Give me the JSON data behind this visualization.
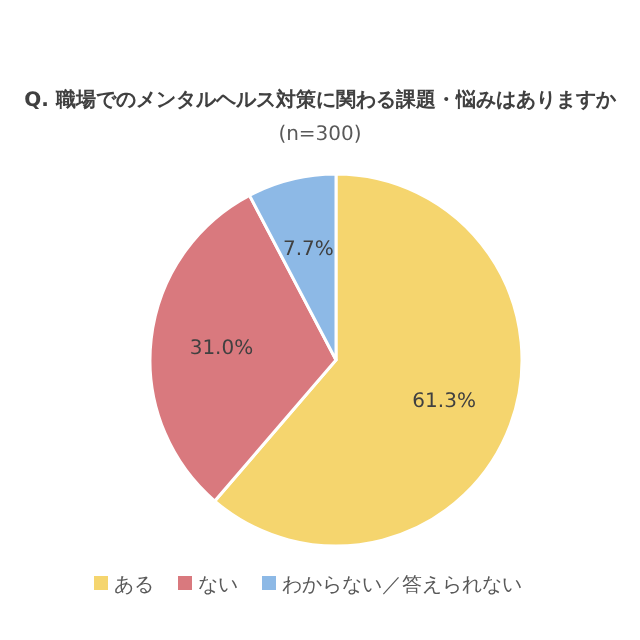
{
  "chart_data": {
    "type": "pie",
    "title": "Q. 職場でのメンタルヘルス対策に関わる課題・悩みはありますか",
    "subtitle": "(n=300)",
    "categories": [
      "ある",
      "ない",
      "わからない／答えられない"
    ],
    "values": [
      61.3,
      31.0,
      7.7
    ],
    "value_labels": [
      "61.3%",
      "31.0%",
      "7.7%"
    ],
    "colors": [
      "#f5d56e",
      "#d9797e",
      "#8db9e6"
    ],
    "legend": "bottom"
  }
}
